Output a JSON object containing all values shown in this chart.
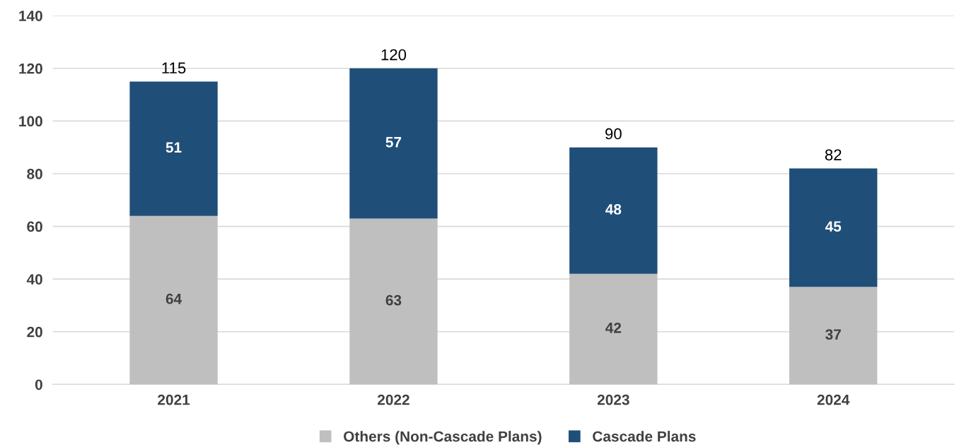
{
  "chart_data": {
    "type": "bar",
    "stacked": true,
    "categories": [
      "2021",
      "2022",
      "2023",
      "2024"
    ],
    "series": [
      {
        "name": "Others (Non-Cascade Plans)",
        "color": "#bfbfbf",
        "values": [
          64,
          63,
          42,
          37
        ]
      },
      {
        "name": "Cascade Plans",
        "color": "#1f4e79",
        "values": [
          51,
          57,
          48,
          45
        ]
      }
    ],
    "totals": [
      "115",
      "120",
      "90",
      "82"
    ],
    "data_labels": true,
    "ylim": [
      0,
      140
    ],
    "yticks": [
      0,
      20,
      40,
      60,
      80,
      100,
      120,
      140
    ],
    "grid": "y",
    "legend": "bottom"
  }
}
